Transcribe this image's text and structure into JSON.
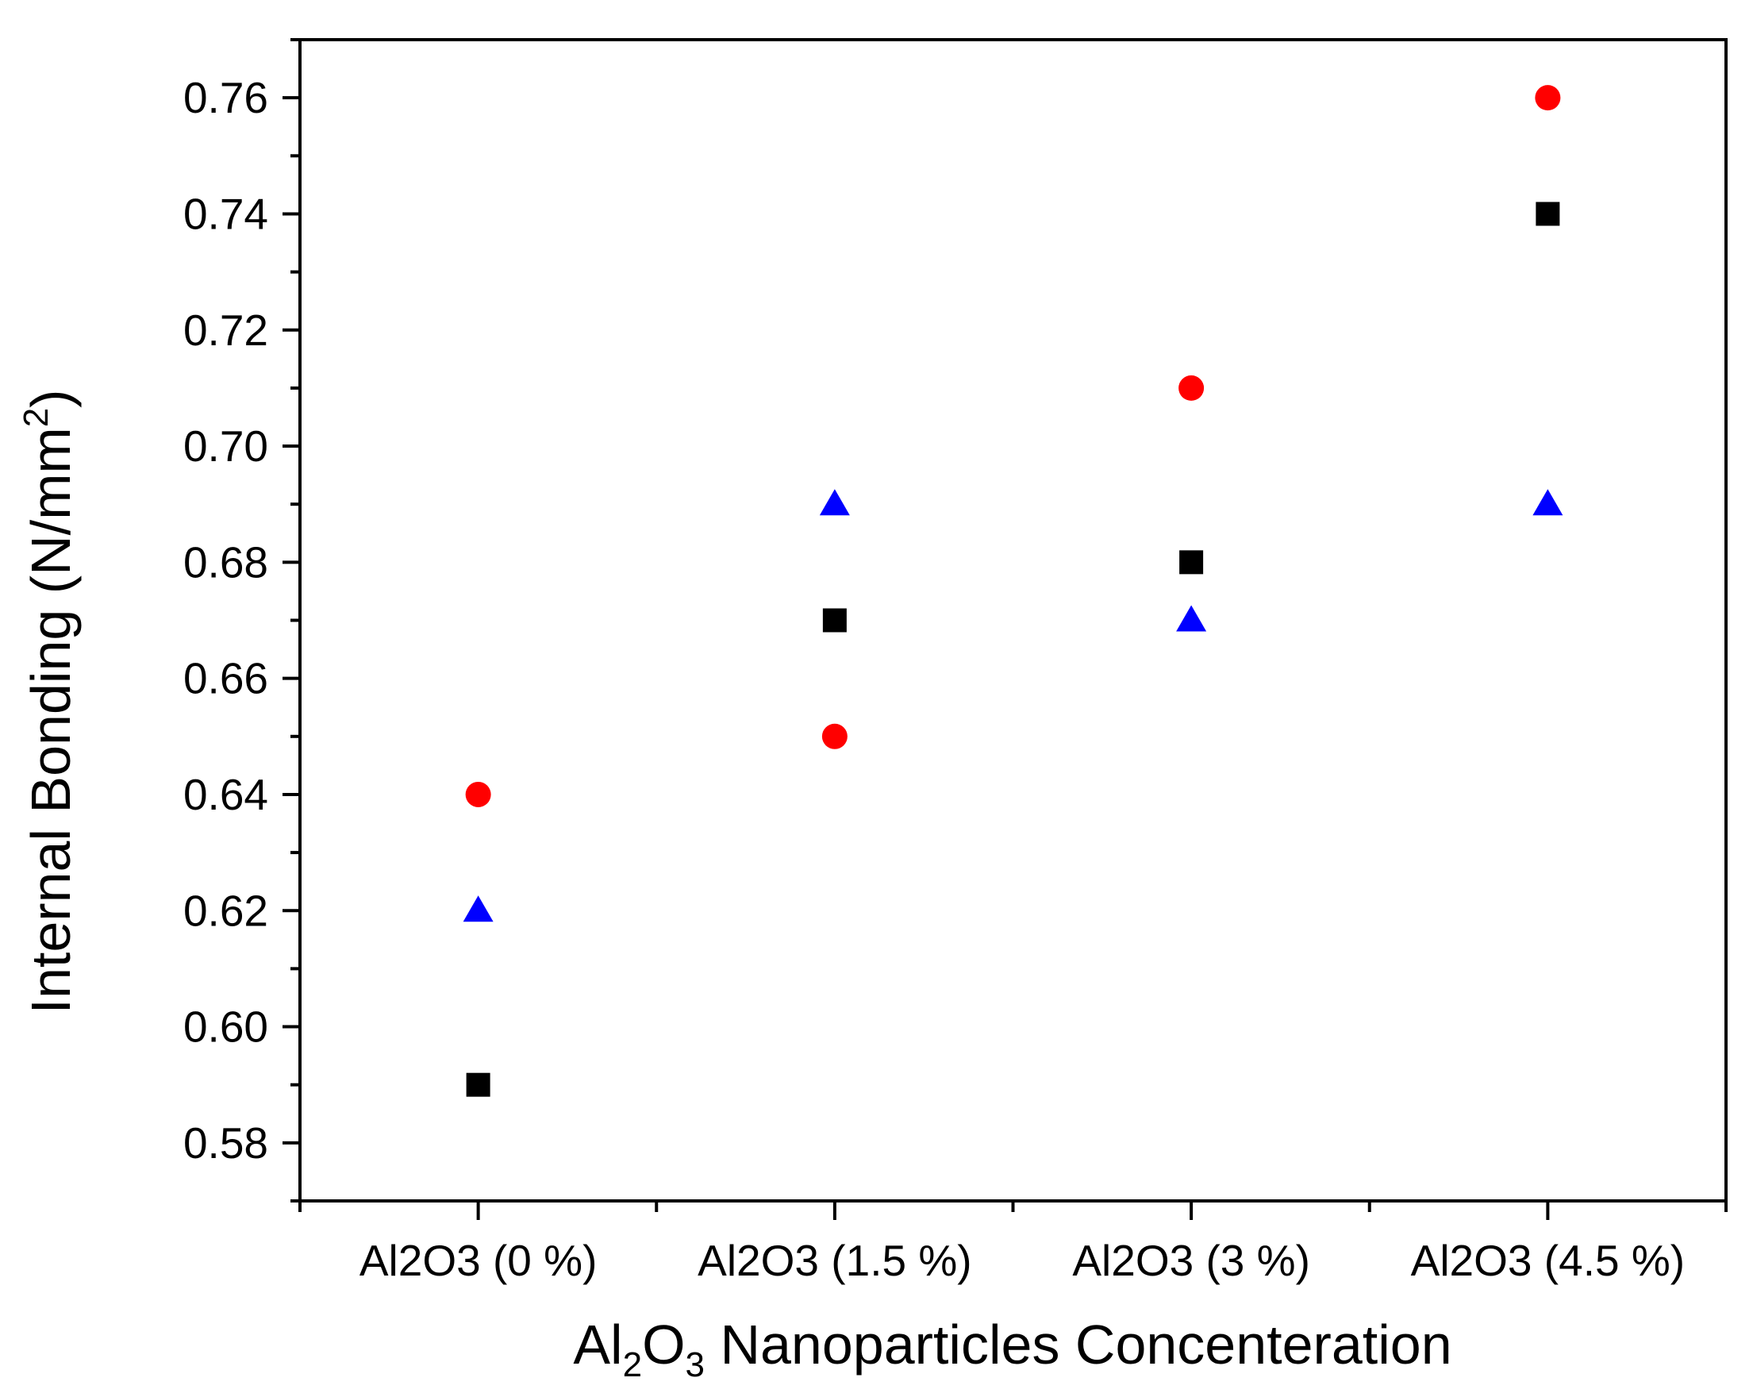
{
  "chart_data": {
    "type": "scatter",
    "categories": [
      "Al2O3 (0 %)",
      "Al2O3 (1.5 %)",
      "Al2O3 (3 %)",
      "Al2O3 (4.5 %)"
    ],
    "series": [
      {
        "name": "square",
        "marker": "square",
        "color": "#000000",
        "values": [
          0.59,
          0.67,
          0.68,
          0.74
        ]
      },
      {
        "name": "circle",
        "marker": "circle",
        "color": "#ff0000",
        "values": [
          0.64,
          0.65,
          0.71,
          0.76
        ]
      },
      {
        "name": "triangle",
        "marker": "triangle",
        "color": "#0000ff",
        "values": [
          0.62,
          0.69,
          0.67,
          0.69
        ]
      }
    ],
    "yticks": [
      "0.58",
      "0.60",
      "0.62",
      "0.64",
      "0.66",
      "0.68",
      "0.70",
      "0.72",
      "0.74",
      "0.76"
    ],
    "ylim": [
      0.57,
      0.77
    ],
    "xlabel": {
      "parts": [
        {
          "text": "Al"
        },
        {
          "text": "2",
          "sub": true
        },
        {
          "text": "O"
        },
        {
          "text": "3",
          "sub": true
        },
        {
          "text": " Nanoparticles Concenteration"
        }
      ]
    },
    "ylabel": {
      "parts": [
        {
          "text": "Internal Bonding (N/mm"
        },
        {
          "text": "2",
          "sup": true
        },
        {
          "text": ")"
        }
      ]
    },
    "legend": "none",
    "grid": false
  }
}
